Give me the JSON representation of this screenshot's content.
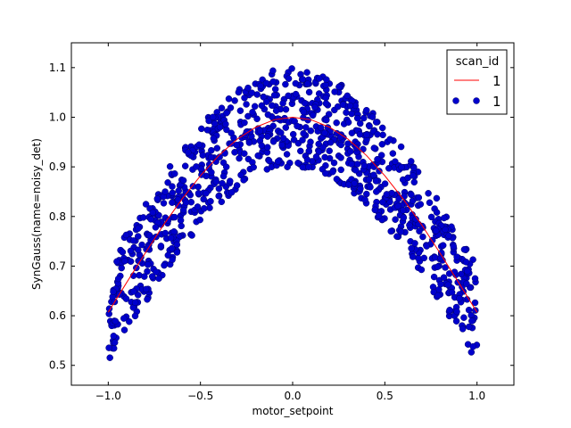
{
  "chart_data": {
    "type": "scatter",
    "xlabel": "motor_setpoint",
    "ylabel": "SynGauss(name=noisy_det)",
    "xlim": [
      -1.2,
      1.2
    ],
    "ylim": [
      0.46,
      1.15
    ],
    "xticks": [
      -1.0,
      -0.5,
      0.0,
      0.5,
      1.0
    ],
    "xtick_labels": [
      "−1.0",
      "−0.5",
      "0.0",
      "0.5",
      "1.0"
    ],
    "yticks": [
      0.5,
      0.6,
      0.7,
      0.8,
      0.9,
      1.0,
      1.1
    ],
    "ytick_labels": [
      "0.5",
      "0.6",
      "0.7",
      "0.8",
      "0.9",
      "1.0",
      "1.1"
    ],
    "grid": false,
    "legend": {
      "title": "scan_id",
      "placement": "top-right",
      "entries": [
        {
          "label": "1",
          "kind": "line",
          "color": "#ff0000"
        },
        {
          "label": "1",
          "kind": "marker",
          "color": "#0000cc"
        }
      ]
    },
    "series": [
      {
        "kind": "line",
        "color": "#ff0000",
        "model": "exp(-x^2/2)",
        "x": [
          -1.0,
          -0.9,
          -0.8,
          -0.7,
          -0.6,
          -0.5,
          -0.4,
          -0.3,
          -0.2,
          -0.1,
          0.0,
          0.1,
          0.2,
          0.3,
          0.4,
          0.5,
          0.6,
          0.7,
          0.8,
          0.9,
          1.0
        ],
        "y": [
          0.607,
          0.667,
          0.726,
          0.783,
          0.835,
          0.882,
          0.923,
          0.956,
          0.98,
          0.995,
          1.0,
          0.995,
          0.98,
          0.956,
          0.923,
          0.882,
          0.835,
          0.783,
          0.726,
          0.667,
          0.607
        ]
      },
      {
        "kind": "scatter",
        "color": "#0000cc",
        "edge_color": "#000066",
        "x_range": [
          -1.0,
          1.0
        ],
        "n_points": 1000,
        "noise_amplitude": 0.1
      }
    ]
  }
}
